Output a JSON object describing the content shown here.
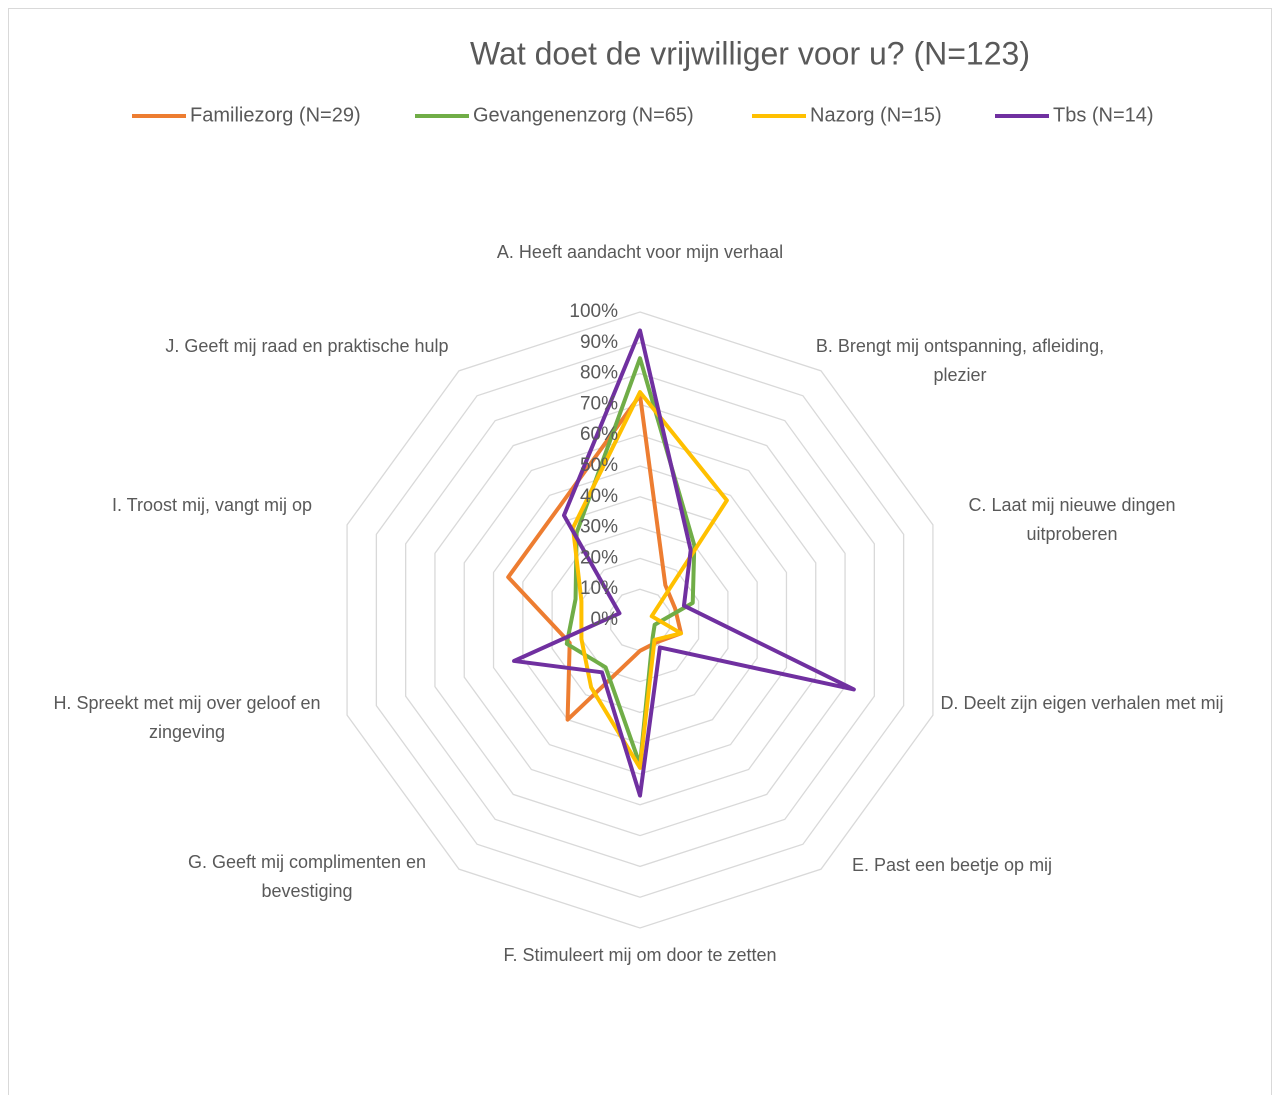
{
  "chart_data": {
    "type": "radar",
    "title": "Wat doet de vrijwilliger voor u? (N=123)",
    "categories": [
      "A. Heeft aandacht voor mijn verhaal",
      "B. Brengt mij ontspanning, afleiding, plezier",
      "C. Laat mij nieuwe dingen uitproberen",
      "D. Deelt zijn eigen verhalen met mij",
      "E. Past een beetje op mij",
      "F. Stimuleert mij om door te zetten",
      "G. Geeft mij complimenten en bevestiging",
      "H. Spreekt met mij over geloof en zingeving",
      "I. Troost mij, vangt mij op",
      "J. Geeft mij raad en praktische hulp"
    ],
    "series": [
      {
        "name": "Familiezorg (N=29)",
        "color": "#ed7d31",
        "values": [
          73,
          14,
          12,
          14,
          9,
          10,
          40,
          24,
          45,
          45
        ]
      },
      {
        "name": "Gevangenenzorg (N=65)",
        "color": "#70ad47",
        "values": [
          85,
          30,
          18,
          5,
          7,
          47,
          19,
          25,
          22,
          35
        ]
      },
      {
        "name": "Nazorg (N=15)",
        "color": "#ffc000",
        "values": [
          74,
          48,
          4,
          14,
          8,
          48,
          27,
          20,
          20,
          37
        ]
      },
      {
        "name": "Tbs (N=14)",
        "color": "#7030a0",
        "values": [
          94,
          28,
          15,
          73,
          11,
          57,
          21,
          43,
          7,
          42
        ]
      }
    ],
    "ylim": [
      0,
      100
    ],
    "yticks": [
      {
        "value": 0,
        "label": "0%"
      },
      {
        "value": 10,
        "label": "10%"
      },
      {
        "value": 20,
        "label": "20%"
      },
      {
        "value": 30,
        "label": "30%"
      },
      {
        "value": 40,
        "label": "40%"
      },
      {
        "value": 50,
        "label": "50%"
      },
      {
        "value": 60,
        "label": "60%"
      },
      {
        "value": 70,
        "label": "70%"
      },
      {
        "value": 80,
        "label": "80%"
      },
      {
        "value": 90,
        "label": "90%"
      },
      {
        "value": 100,
        "label": "100%"
      }
    ],
    "grid": true,
    "legend": "top"
  }
}
